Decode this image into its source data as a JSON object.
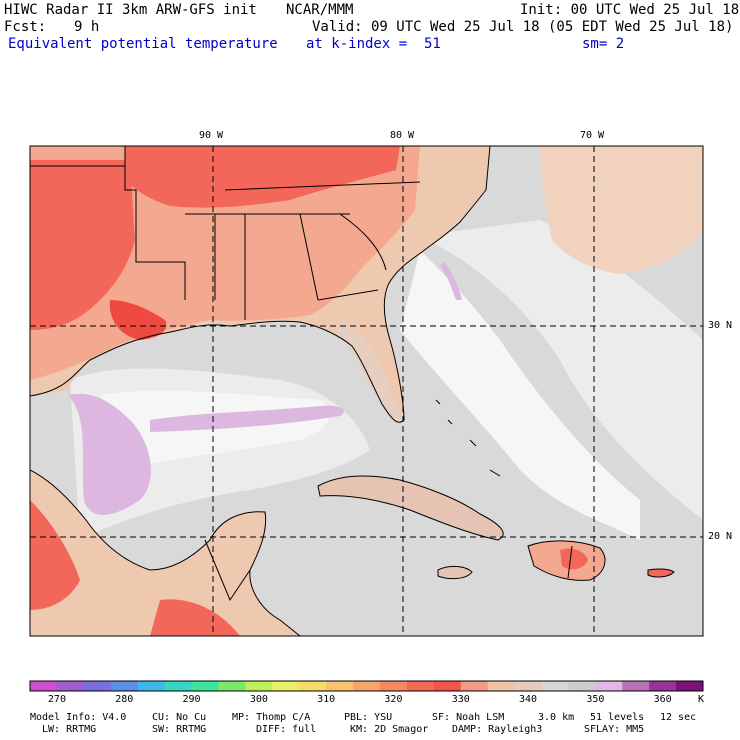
{
  "header": {
    "title": "HIWC Radar II 3km ARW-GFS init",
    "org": "NCAR/MMM",
    "init": "Init: 00 UTC Wed 25 Jul 18",
    "fcst_label": "Fcst:",
    "fcst_value": "9 h",
    "valid": "Valid: 09 UTC Wed 25 Jul 18 (05 EDT Wed 25 Jul 18)",
    "field": "Equivalent potential temperature",
    "level": "at k-index =  51",
    "smooth": "sm= 2"
  },
  "map": {
    "lon_labels": [
      {
        "text": "90 W",
        "lon": -90
      },
      {
        "text": "80 W",
        "lon": -80
      },
      {
        "text": "70 W",
        "lon": -70
      }
    ],
    "lat_labels": [
      {
        "text": "30 N",
        "lat": 30
      },
      {
        "text": "20 N",
        "lat": 20
      }
    ],
    "colors": {
      "ocean": "#d9d9d9",
      "ocean_light": "#ececec",
      "ocean_white": "#f6f6f6",
      "lavender": "#dcb8e0",
      "land_tan": "#efc8b0",
      "land_salmon": "#f5a890",
      "land_red": "#f2675a",
      "land_deep": "#ef4a40"
    }
  },
  "colorbar": {
    "ticks": [
      "270",
      "280",
      "290",
      "300",
      "310",
      "320",
      "330",
      "340",
      "350",
      "360"
    ],
    "unit": "K",
    "colors": [
      "#cc4fcf",
      "#a25ecf",
      "#7b6fe0",
      "#5a8fe8",
      "#3fb7e9",
      "#37d6c2",
      "#3fe59a",
      "#7be86a",
      "#bff05a",
      "#e9f067",
      "#f7dc6a",
      "#f9c36b",
      "#f7a66b",
      "#f58a61",
      "#f46a55",
      "#f55448",
      "#f59a86",
      "#f1c3a7",
      "#e5cbbe",
      "#d6d6d6",
      "#cccccc",
      "#e0b8e3",
      "#b873b8",
      "#993399",
      "#7a127a"
    ]
  },
  "footer": {
    "line1": [
      "Model Info: V4.0",
      "CU: No Cu",
      "MP: Thomp C/A",
      "PBL: YSU",
      "SF: Noah LSM",
      "3.0 km",
      "51 levels",
      "12 sec"
    ],
    "line2": [
      "LW: RRTMG",
      "SW: RRTMG",
      "DIFF: full",
      "KM: 2D Smagor",
      "DAMP: Rayleigh3",
      "SFLAY: MM5"
    ]
  }
}
